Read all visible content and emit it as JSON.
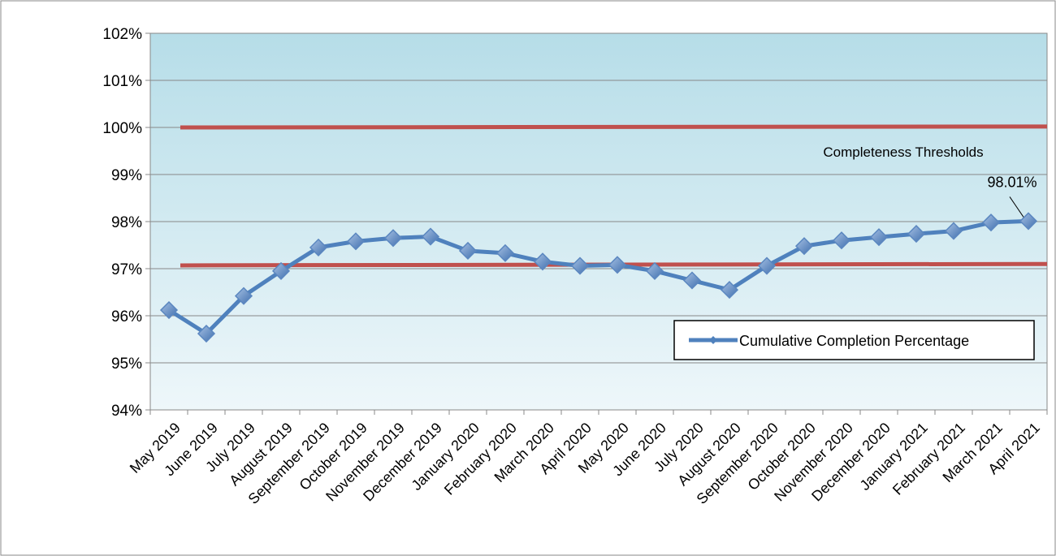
{
  "chart_data": {
    "type": "line",
    "categories": [
      "May 2019",
      "June 2019",
      "July 2019",
      "August 2019",
      "September 2019",
      "October 2019",
      "November 2019",
      "December 2019",
      "January 2020",
      "February 2020",
      "March 2020",
      "April 2020",
      "May 2020",
      "June 2020",
      "July 2020",
      "August 2020",
      "September 2020",
      "October 2020",
      "November 2020",
      "December 2020",
      "January 2021",
      "February 2021",
      "March 2021",
      "April 2021"
    ],
    "series": [
      {
        "name": "Cumulative Completion Percentage",
        "color": "#4f81bd",
        "values": [
          96.12,
          95.62,
          96.42,
          96.95,
          97.45,
          97.58,
          97.65,
          97.68,
          97.38,
          97.33,
          97.15,
          97.06,
          97.08,
          96.95,
          96.75,
          96.55,
          97.06,
          97.48,
          97.6,
          97.67,
          97.74,
          97.8,
          97.98,
          98.01
        ],
        "value_labels": [
          null,
          null,
          null,
          null,
          null,
          null,
          null,
          null,
          null,
          null,
          null,
          null,
          null,
          null,
          null,
          null,
          null,
          null,
          null,
          null,
          null,
          null,
          null,
          "98.01%"
        ]
      }
    ],
    "thresholds": {
      "label": "Completeness Thresholds",
      "color": "#c0504d",
      "lines": [
        [
          100.0,
          100.02
        ],
        [
          97.07,
          97.1
        ]
      ]
    },
    "ylim": [
      94,
      102
    ],
    "yticks": [
      {
        "value": 94,
        "label": "94%"
      },
      {
        "value": 95,
        "label": "95%"
      },
      {
        "value": 96,
        "label": "96%"
      },
      {
        "value": 97,
        "label": "97%"
      },
      {
        "value": 98,
        "label": "98%"
      },
      {
        "value": 99,
        "label": "99%"
      },
      {
        "value": 100,
        "label": "100%"
      },
      {
        "value": 101,
        "label": "101%"
      },
      {
        "value": 102,
        "label": "102%"
      }
    ],
    "grid": true,
    "legend": "lower-right"
  }
}
